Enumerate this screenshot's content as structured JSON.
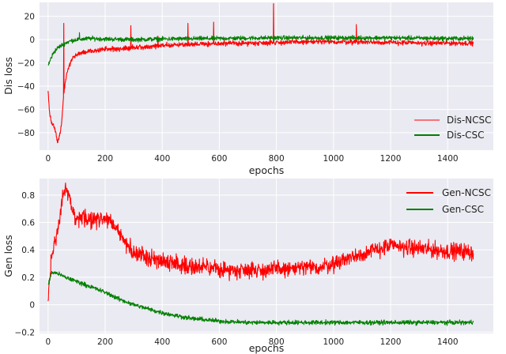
{
  "chart_data": [
    {
      "type": "line",
      "title": "",
      "xlabel": "epochs",
      "ylabel": "Dis loss",
      "xlim": [
        -30,
        1560
      ],
      "ylim": [
        -95,
        32
      ],
      "xticks": [
        0,
        200,
        400,
        600,
        800,
        1000,
        1200,
        1400
      ],
      "yticks": [
        -80,
        -60,
        -40,
        -20,
        0,
        20
      ],
      "grid": true,
      "legend_position": "bottom-right",
      "series": [
        {
          "name": "Dis-NCSC",
          "color": "#ff0000",
          "x": [
            0,
            5,
            10,
            15,
            20,
            25,
            30,
            35,
            40,
            45,
            50,
            55,
            60,
            70,
            80,
            90,
            100,
            120,
            150,
            200,
            250,
            300,
            350,
            400,
            450,
            500,
            600,
            700,
            800,
            900,
            1000,
            1100,
            1200,
            1300,
            1400,
            1490
          ],
          "y": [
            -45,
            -62,
            -70,
            -73,
            -75,
            -78,
            -84,
            -88,
            -83,
            -76,
            -63,
            -48,
            -35,
            -25,
            -19,
            -15,
            -13,
            -11,
            -10,
            -8,
            -8,
            -7,
            -6,
            -5,
            -4.5,
            -4,
            -3.5,
            -3,
            -2.5,
            -2,
            -2,
            -2,
            -2.5,
            -3,
            -3,
            -3
          ],
          "spikes": [
            [
              55,
              14
            ],
            [
              290,
              12
            ],
            [
              385,
              3
            ],
            [
              490,
              14
            ],
            [
              580,
              15
            ],
            [
              790,
              31
            ],
            [
              1080,
              13
            ]
          ],
          "noise": 1.6
        },
        {
          "name": "Dis-CSC",
          "color": "#008000",
          "x": [
            0,
            10,
            20,
            30,
            40,
            60,
            80,
            100,
            150,
            200,
            300,
            400,
            600,
            800,
            1000,
            1200,
            1400,
            1490
          ],
          "y": [
            -22,
            -16,
            -11,
            -8,
            -6,
            -3,
            -1,
            0,
            1,
            0.5,
            0,
            0.5,
            1,
            1.5,
            1.5,
            1.5,
            1,
            1
          ],
          "spikes": [
            [
              110,
              6
            ]
          ],
          "noise": 1.4
        }
      ]
    },
    {
      "type": "line",
      "title": "",
      "xlabel": "epochs",
      "ylabel": "Gen loss",
      "xlim": [
        -30,
        1560
      ],
      "ylim": [
        -0.21,
        0.92
      ],
      "xticks": [
        0,
        200,
        400,
        600,
        800,
        1000,
        1200,
        1400
      ],
      "yticks": [
        -0.2,
        0.0,
        0.2,
        0.4,
        0.6,
        0.8
      ],
      "grid": true,
      "legend_position": "top-right",
      "series": [
        {
          "name": "Gen-NCSC",
          "color": "#ff0000",
          "x": [
            0,
            5,
            10,
            15,
            20,
            30,
            40,
            50,
            60,
            70,
            80,
            90,
            100,
            120,
            150,
            180,
            200,
            220,
            250,
            280,
            300,
            350,
            400,
            450,
            500,
            550,
            600,
            650,
            700,
            750,
            800,
            850,
            900,
            950,
            1000,
            1050,
            1100,
            1150,
            1200,
            1250,
            1300,
            1350,
            1400,
            1450,
            1490
          ],
          "y": [
            0.05,
            0.15,
            0.3,
            0.38,
            0.42,
            0.5,
            0.62,
            0.78,
            0.85,
            0.8,
            0.72,
            0.65,
            0.62,
            0.63,
            0.62,
            0.63,
            0.64,
            0.6,
            0.52,
            0.42,
            0.38,
            0.35,
            0.32,
            0.3,
            0.28,
            0.27,
            0.26,
            0.25,
            0.26,
            0.25,
            0.26,
            0.26,
            0.27,
            0.27,
            0.3,
            0.34,
            0.37,
            0.4,
            0.43,
            0.42,
            0.41,
            0.4,
            0.39,
            0.39,
            0.38
          ],
          "noise": 0.045
        },
        {
          "name": "Gen-CSC",
          "color": "#008000",
          "x": [
            0,
            10,
            20,
            40,
            60,
            100,
            150,
            200,
            250,
            300,
            350,
            400,
            450,
            500,
            600,
            700,
            800,
            1000,
            1200,
            1400,
            1490
          ],
          "y": [
            0.14,
            0.22,
            0.24,
            0.22,
            0.2,
            0.17,
            0.13,
            0.09,
            0.04,
            0.0,
            -0.03,
            -0.06,
            -0.08,
            -0.1,
            -0.12,
            -0.13,
            -0.13,
            -0.13,
            -0.13,
            -0.13,
            -0.13
          ],
          "noise": 0.012
        }
      ]
    }
  ]
}
